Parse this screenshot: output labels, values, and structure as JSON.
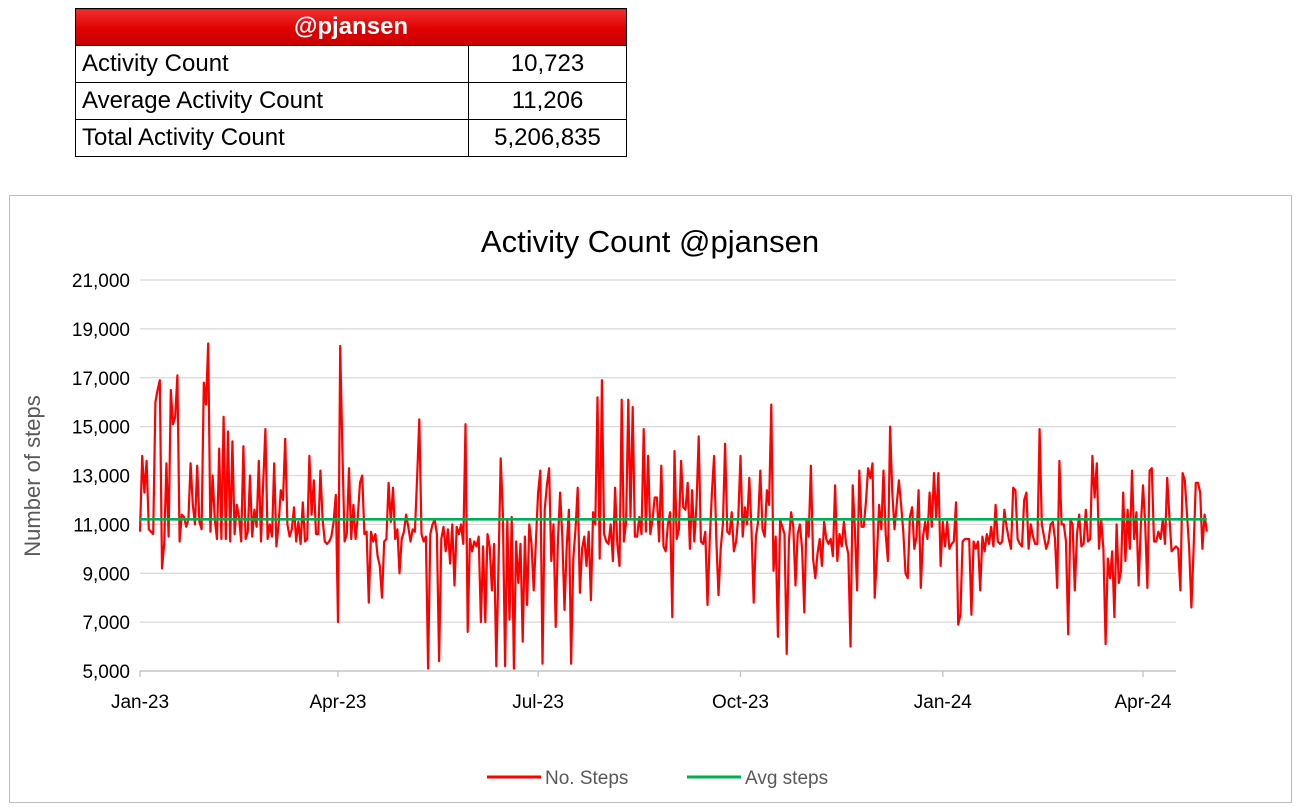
{
  "summary": {
    "header": "@pjansen",
    "rows": [
      {
        "label": "Activity Count",
        "value": "10,723"
      },
      {
        "label": "Average Activity Count",
        "value": "11,206"
      },
      {
        "label": "Total Activity Count",
        "value": "5,206,835"
      }
    ]
  },
  "chart_data": {
    "type": "line",
    "title": "Activity Count @pjansen",
    "xlabel": "",
    "ylabel": "Number of steps",
    "ylim": [
      5000,
      21000
    ],
    "xlim": [
      "2023-01-01",
      "2024-04-16"
    ],
    "yticks": [
      "21,000",
      "19,000",
      "17,000",
      "15,000",
      "13,000",
      "11,000",
      "9,000",
      "7,000",
      "5,000"
    ],
    "xticks": [
      {
        "date": "2023-01-01",
        "label": "Jan-23"
      },
      {
        "date": "2023-04-01",
        "label": "Apr-23"
      },
      {
        "date": "2023-07-01",
        "label": "Jul-23"
      },
      {
        "date": "2023-10-01",
        "label": "Oct-23"
      },
      {
        "date": "2024-01-01",
        "label": "Jan-24"
      },
      {
        "date": "2024-04-01",
        "label": "Apr-24"
      }
    ],
    "grid": true,
    "legend_position": "bottom",
    "series": [
      {
        "name": "No. Steps",
        "color": "#ff0000",
        "start_date": "2023-01-01",
        "values": [
          10700,
          13800,
          12300,
          13600,
          10800,
          10700,
          10600,
          16000,
          16500,
          16900,
          9200,
          10200,
          13500,
          10500,
          16500,
          15100,
          15400,
          17100,
          10300,
          11400,
          11300,
          10900,
          11200,
          13500,
          11800,
          11000,
          13400,
          11100,
          10800,
          16800,
          15900,
          18400,
          10700,
          13000,
          11200,
          10400,
          14100,
          10400,
          15400,
          10400,
          14800,
          10300,
          14400,
          10600,
          11800,
          11300,
          10300,
          14200,
          10400,
          10700,
          13000,
          10500,
          11600,
          10900,
          13600,
          10300,
          12700,
          14900,
          10400,
          11000,
          10500,
          13500,
          10100,
          11000,
          12400,
          12000,
          14500,
          11000,
          10500,
          10800,
          11700,
          10300,
          11100,
          10200,
          11900,
          10300,
          10400,
          13800,
          11400,
          12800,
          10600,
          10600,
          13200,
          11200,
          10300,
          10200,
          10300,
          10500,
          11100,
          12200,
          7000,
          18300,
          14000,
          10300,
          10600,
          13300,
          10400,
          11800,
          10400,
          11300,
          12700,
          13000,
          10600,
          10700,
          7800,
          10700,
          10300,
          10600,
          9700,
          9300,
          8000,
          10300,
          10400,
          12700,
          11100,
          12500,
          10400,
          10800,
          9000,
          10400,
          10700,
          11400,
          10900,
          10300,
          10800,
          10700,
          12900,
          15300,
          10600,
          10300,
          10500,
          5100,
          10600,
          11000,
          11200,
          10600,
          5400,
          10400,
          10900,
          9900,
          10800,
          9400,
          11000,
          8500,
          10900,
          10600,
          11000,
          10200,
          15100,
          6600,
          10400,
          9900,
          10300,
          10100,
          10500,
          7000,
          10100,
          7000,
          10600,
          10100,
          8300,
          10200,
          5200,
          9300,
          13700,
          11400,
          5200,
          11200,
          7100,
          11300,
          5100,
          10300,
          8600,
          10200,
          6200,
          10500,
          7700,
          11000,
          10200,
          8300,
          10300,
          12300,
          13200,
          5300,
          11600,
          12600,
          13300,
          9500,
          11000,
          6800,
          10300,
          12300,
          10500,
          7500,
          10100,
          11600,
          5300,
          9600,
          10800,
          12500,
          8200,
          10000,
          10500,
          9300,
          10700,
          7900,
          11500,
          11000,
          16200,
          9600,
          16900,
          10600,
          10300,
          10200,
          11000,
          9500,
          12500,
          10200,
          9300,
          16100,
          10300,
          11100,
          16100,
          11300,
          15800,
          10500,
          10500,
          11300,
          10600,
          14900,
          10700,
          13800,
          10600,
          11200,
          12100,
          12100,
          10300,
          13400,
          10100,
          9900,
          11000,
          11500,
          7200,
          14000,
          10400,
          10800,
          13600,
          11700,
          11600,
          12700,
          10000,
          12400,
          10300,
          11800,
          14600,
          10300,
          10200,
          10700,
          7700,
          10300,
          12300,
          13800,
          10400,
          8100,
          10000,
          11000,
          14300,
          10700,
          10600,
          11500,
          9900,
          10300,
          11300,
          13800,
          10500,
          11700,
          11000,
          12900,
          10800,
          7800,
          10500,
          11100,
          13200,
          10800,
          10500,
          12400,
          11800,
          15900,
          9100,
          10500,
          6400,
          11200,
          10900,
          10600,
          5700,
          10300,
          11500,
          10900,
          8500,
          10600,
          11000,
          10000,
          7400,
          11200,
          10500,
          13400,
          9600,
          8800,
          9800,
          10400,
          9300,
          11100,
          10400,
          10200,
          10400,
          9700,
          12600,
          9500,
          10600,
          10100,
          11100,
          10200,
          9800,
          6000,
          12600,
          10800,
          8300,
          13200,
          10900,
          10900,
          11900,
          13300,
          12900,
          13500,
          8000,
          9700,
          11800,
          10800,
          13200,
          10600,
          9500,
          15000,
          12300,
          10800,
          11800,
          12800,
          11800,
          10700,
          9000,
          8800,
          11300,
          11700,
          10000,
          10500,
          12400,
          8400,
          10500,
          11100,
          10400,
          12300,
          10900,
          13100,
          11200,
          13100,
          9300,
          11100,
          10100,
          11100,
          10000,
          10200,
          10300,
          11900,
          6900,
          7300,
          10300,
          10400,
          10400,
          10400,
          7300,
          10300,
          10000,
          10300,
          8300,
          10500,
          9900,
          10600,
          10200,
          10900,
          10100,
          11800,
          10300,
          10200,
          10300,
          11600,
          10900,
          10400,
          10000,
          12500,
          12400,
          10400,
          10200,
          10100,
          12000,
          12300,
          10000,
          11000,
          10500,
          10200,
          10200,
          14900,
          11000,
          10500,
          10000,
          10300,
          11000,
          11100,
          10400,
          8400,
          13600,
          11000,
          11000,
          10300,
          6500,
          11200,
          11000,
          8300,
          10600,
          11400,
          10100,
          10200,
          11600,
          10300,
          10400,
          13800,
          12100,
          13500,
          10000,
          11200,
          10000,
          6100,
          9600,
          8800,
          9900,
          7200,
          11000,
          8600,
          9100,
          12300,
          9500,
          11600,
          10000,
          13200,
          10400,
          11500,
          8500,
          10900,
          12600,
          11000,
          8400,
          13200,
          13300,
          10300,
          10300,
          10700,
          10400,
          11200,
          10200,
          12900,
          11300,
          9900,
          10000,
          10100,
          10000,
          8300,
          13100,
          12800,
          11400,
          10000,
          7600,
          10000,
          12700,
          12700,
          12300,
          10000,
          11400,
          10700
        ]
      },
      {
        "name": "Avg steps",
        "color": "#00b050",
        "values": [
          11206,
          11206
        ]
      }
    ]
  }
}
